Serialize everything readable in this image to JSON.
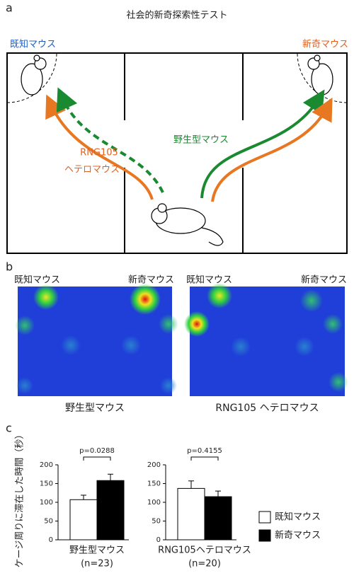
{
  "figure": {
    "panel_a": {
      "letter": "a",
      "title": "社会的新奇探索性テスト",
      "familiar_label": "既知マウス",
      "novel_label": "新奇マウス",
      "wild_type_label": "野生型マウス",
      "hetero_label_line1": "RNG105",
      "hetero_label_line2": "ヘテロマウス"
    },
    "panel_b": {
      "letter": "b",
      "heatmaps": [
        {
          "familiar_label": "既知マウス",
          "novel_label": "新奇マウス",
          "caption": "野生型マウス"
        },
        {
          "familiar_label": "既知マウス",
          "novel_label": "新奇マウス",
          "caption": "RNG105 ヘテロマウス"
        }
      ]
    },
    "panel_c": {
      "letter": "c"
    }
  },
  "chart_data": [
    {
      "type": "bar",
      "ylabel": "ケージ周りに滞在した時間（秒）",
      "categories": [
        "野生型マウス"
      ],
      "sample_size": "(n=23)",
      "annotation": "p=0.0288",
      "ylim": [
        0,
        200
      ],
      "yticks": [
        0,
        50,
        100,
        150,
        200
      ],
      "series": [
        {
          "name": "既知マウス",
          "color": "#ffffff",
          "values": [
            107
          ],
          "errors": [
            12
          ]
        },
        {
          "name": "新奇マウス",
          "color": "#000000",
          "values": [
            158
          ],
          "errors": [
            17
          ]
        }
      ]
    },
    {
      "type": "bar",
      "categories": [
        "RNG105ヘテロマウス"
      ],
      "sample_size": "(n=20)",
      "annotation": "p=0.4155",
      "ylim": [
        0,
        200
      ],
      "yticks": [
        0,
        50,
        100,
        150,
        200
      ],
      "series": [
        {
          "name": "既知マウス",
          "color": "#ffffff",
          "values": [
            137
          ],
          "errors": [
            20
          ]
        },
        {
          "name": "新奇マウス",
          "color": "#000000",
          "values": [
            115
          ],
          "errors": [
            15
          ]
        }
      ]
    }
  ]
}
